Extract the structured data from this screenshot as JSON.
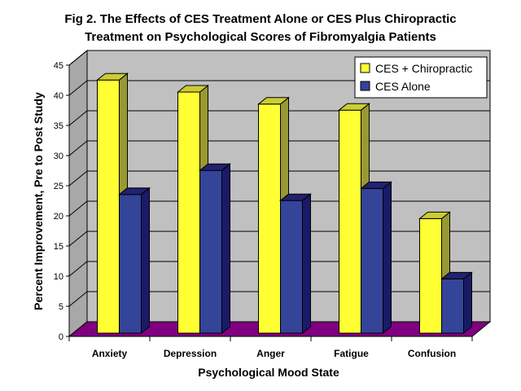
{
  "chart_data": {
    "type": "bar",
    "title_line1": "Fig 2. The Effects of CES Treatment Alone or CES Plus Chiropractic",
    "title_line2": "Treatment on Psychological Scores of Fibromyalgia Patients",
    "xlabel": "Psychological Mood State",
    "ylabel": "Percent Improvement, Pre to Post Study",
    "categories": [
      "Anxiety",
      "Depression",
      "Anger",
      "Fatigue",
      "Confusion"
    ],
    "series": [
      {
        "name": "CES + Chiropractic",
        "values": [
          42,
          40,
          38,
          37,
          19
        ],
        "color": "#ffff33",
        "side": "#999933",
        "top": "#cccc33"
      },
      {
        "name": "CES Alone",
        "values": [
          23,
          27,
          22,
          24,
          9
        ],
        "color": "#334499",
        "side": "#1a1a66",
        "top": "#22226e"
      }
    ],
    "ylim": [
      0,
      45
    ],
    "yticks": [
      0,
      5,
      10,
      15,
      20,
      25,
      30,
      35,
      40,
      45
    ],
    "grid": true,
    "legend_position": "top-right",
    "colors": {
      "wall": "#c0c0c0",
      "floor": "#800080",
      "grid": "#000000"
    }
  }
}
